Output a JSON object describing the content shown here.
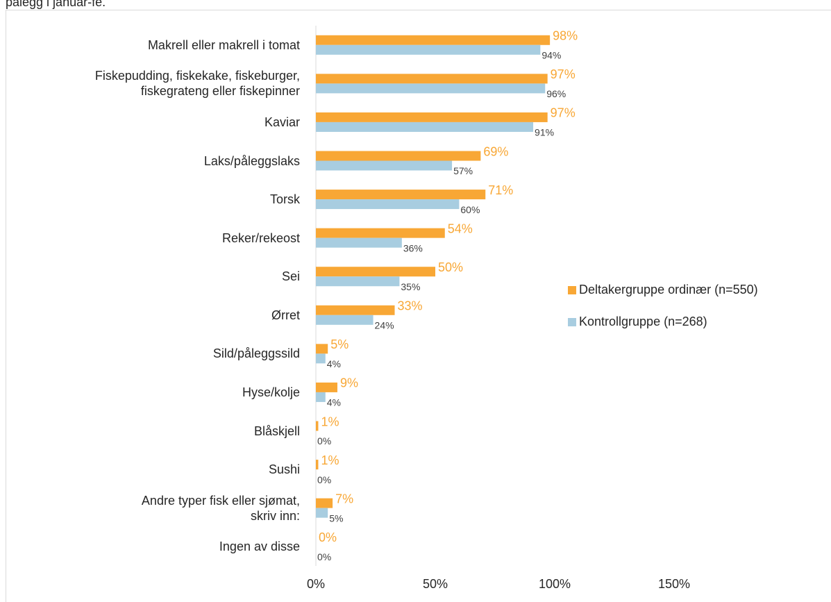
{
  "chart_data": {
    "type": "bar",
    "orientation": "horizontal",
    "title": "pålegg i januar-fe.",
    "categories": [
      "Makrell eller makrell i tomat",
      "Fiskepudding, fiskekake, fiskeburger,\nfiskegrateng eller fiskepinner",
      "Kaviar",
      "Laks/påleggslaks",
      "Torsk",
      "Reker/rekeost",
      "Sei",
      "Ørret",
      "Sild/påleggssild",
      "Hyse/kolje",
      "Blåskjell",
      "Sushi",
      "Andre typer fisk eller sjømat,\nskriv inn:",
      "Ingen av disse"
    ],
    "series": [
      {
        "name": "Deltakergruppe ordinær (n=550)",
        "color": "#f8a735",
        "values": [
          98,
          97,
          97,
          69,
          71,
          54,
          50,
          33,
          5,
          9,
          1,
          1,
          7,
          0
        ],
        "value_labels": [
          "98%",
          "97%",
          "97%",
          "69%",
          "71%",
          "54%",
          "50%",
          "33%",
          "5%",
          "9%",
          "1%",
          "1%",
          "7%",
          "0%"
        ]
      },
      {
        "name": "Kontrollgruppe (n=268)",
        "color": "#a8cde0",
        "values": [
          94,
          96,
          91,
          57,
          60,
          36,
          35,
          24,
          4,
          4,
          0,
          0,
          5,
          0
        ],
        "value_labels": [
          "94%",
          "96%",
          "91%",
          "57%",
          "60%",
          "36%",
          "35%",
          "24%",
          "4%",
          "4%",
          "0%",
          "0%",
          "5%",
          "0%"
        ]
      }
    ],
    "xlim": [
      0,
      200
    ],
    "xticks": [
      {
        "value": 0,
        "label": "0%"
      },
      {
        "value": 50,
        "label": "50%"
      },
      {
        "value": 100,
        "label": "100%"
      },
      {
        "value": 150,
        "label": "150%"
      }
    ],
    "legend": "right"
  }
}
